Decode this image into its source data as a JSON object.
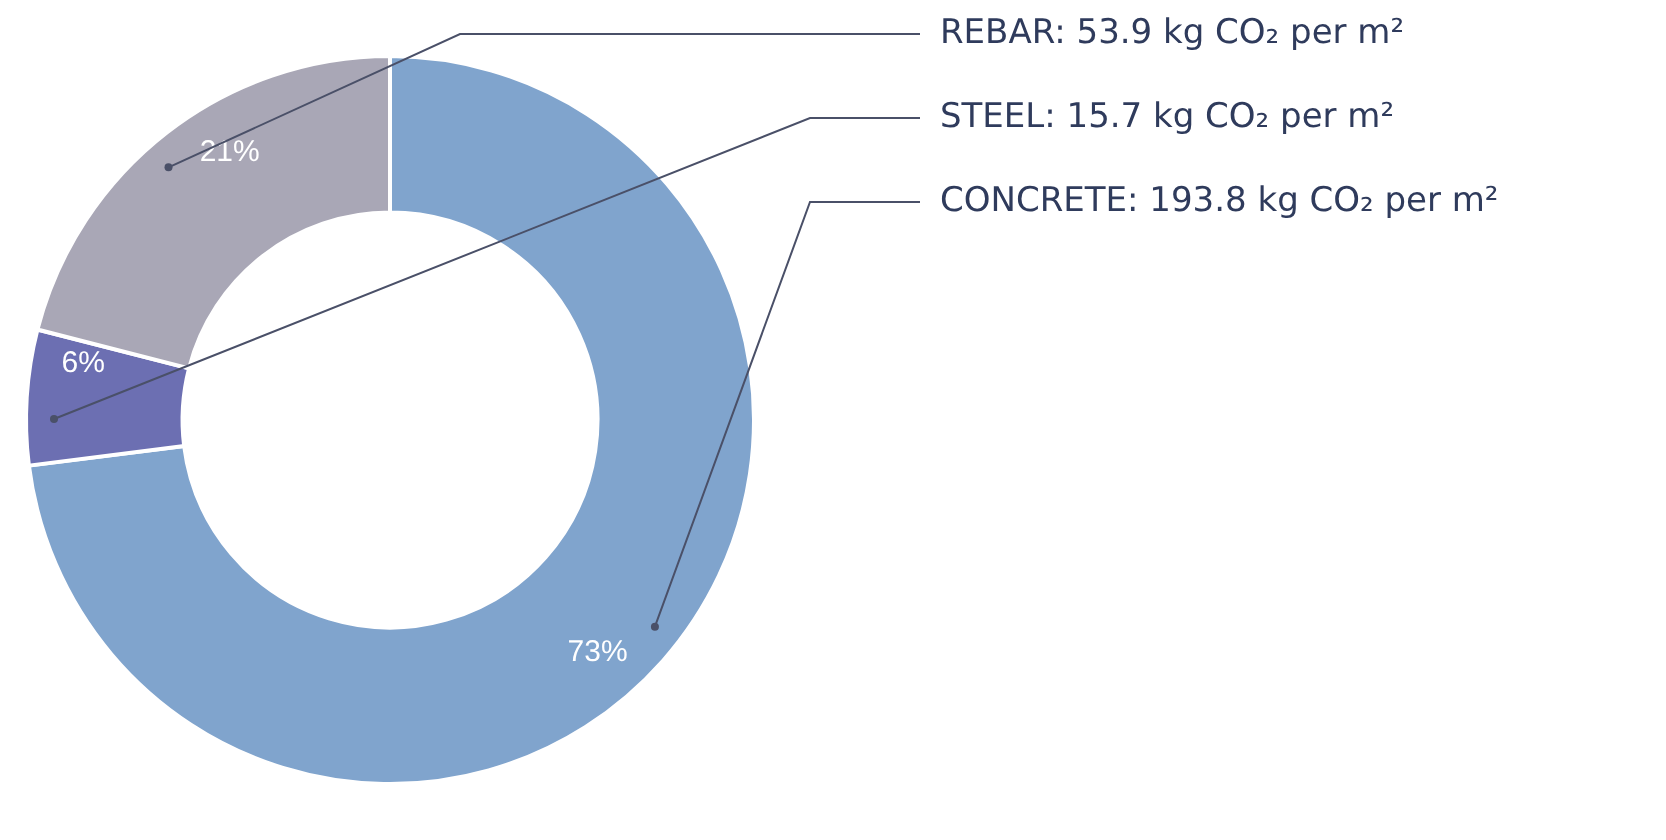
{
  "chart_data": {
    "type": "donut",
    "categories": [
      "CONCRETE: 193.8 kg CO₂ per m²",
      "STEEL: 15.7 kg CO₂ per m²",
      "REBAR: 53.9 kg CO₂ per m²"
    ],
    "values": [
      73,
      6,
      21
    ],
    "colors": [
      "#80a4cd",
      "#6c6fb2",
      "#a9a7b6"
    ],
    "value_labels": [
      "73%",
      "6%",
      "21%"
    ]
  }
}
